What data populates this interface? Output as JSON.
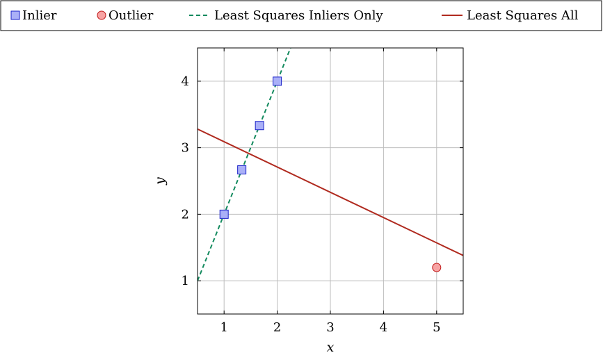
{
  "chart_data": {
    "type": "scatter",
    "title": "",
    "xlabel": "x",
    "ylabel": "y",
    "xlim": [
      0.5,
      5.5
    ],
    "ylim": [
      0.5,
      4.5
    ],
    "grid": true,
    "legend_position": "top",
    "xticks": [
      1,
      2,
      3,
      4,
      5
    ],
    "yticks": [
      1,
      2,
      3,
      4
    ],
    "series": [
      {
        "name": "Inlier",
        "kind": "points",
        "marker": "square",
        "fill": "#aab0f7",
        "stroke": "#1a22c9",
        "points": [
          [
            1,
            2
          ],
          [
            1.333,
            2.667
          ],
          [
            1.667,
            3.333
          ],
          [
            2,
            4
          ]
        ]
      },
      {
        "name": "Outlier",
        "kind": "points",
        "marker": "circle",
        "fill": "#f7a3a3",
        "stroke": "#c01717",
        "points": [
          [
            5,
            1.2
          ]
        ]
      },
      {
        "name": "Least Squares Inliers Only",
        "kind": "line",
        "dash": true,
        "color": "#138a5e",
        "points": [
          [
            0.5,
            1.0
          ],
          [
            2.25,
            4.5
          ]
        ]
      },
      {
        "name": "Least Squares All",
        "kind": "line",
        "dash": false,
        "color": "#b02a1f",
        "points": [
          [
            0.5,
            3.28
          ],
          [
            5.5,
            1.38
          ]
        ]
      }
    ]
  }
}
